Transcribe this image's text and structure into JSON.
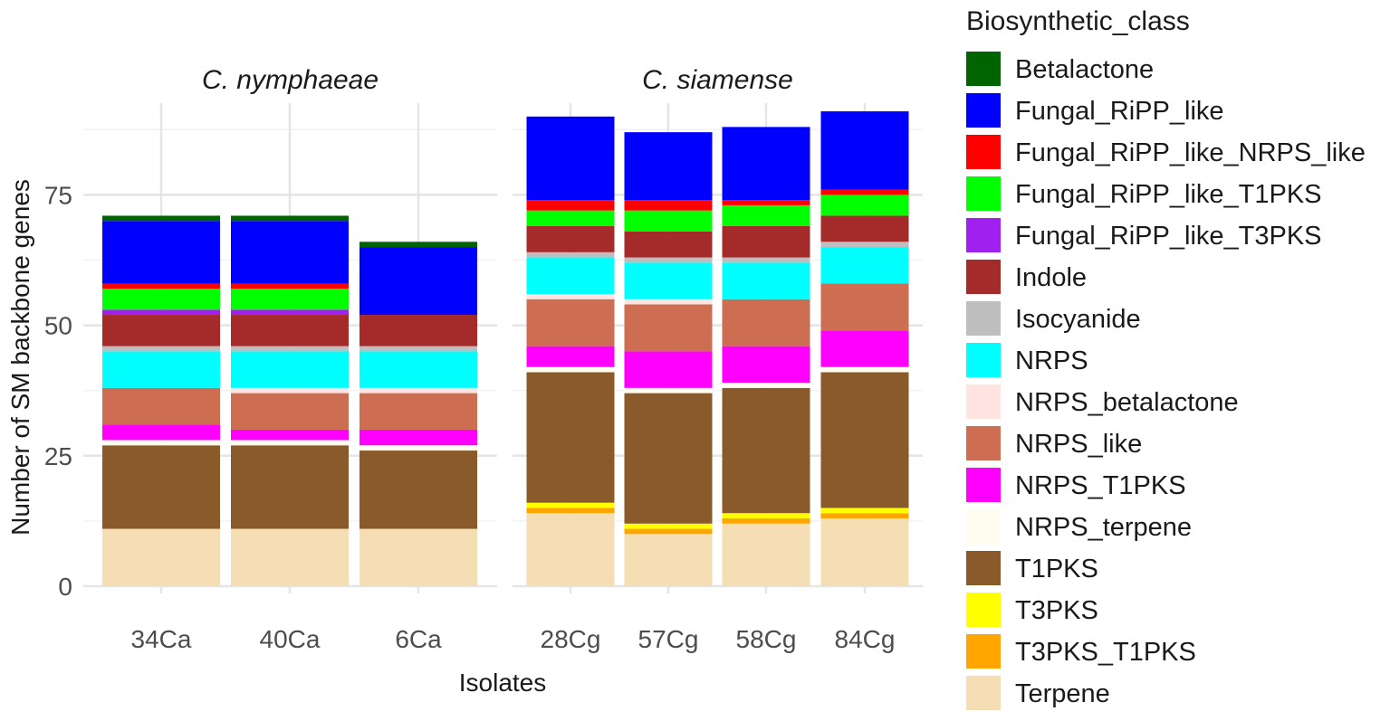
{
  "chart_data": {
    "type": "bar",
    "stacked": true,
    "xlabel": "Isolates",
    "ylabel": "Number of SM backbone genes",
    "ylim": [
      0,
      95
    ],
    "yticks": [
      0,
      25,
      50,
      75
    ],
    "legend_title": "Biosynthetic_class",
    "legend_position": "right",
    "facets": [
      {
        "title": "C. nymphaeae",
        "categories": [
          "34Ca",
          "40Ca",
          "6Ca"
        ]
      },
      {
        "title": "C. siamense",
        "categories": [
          "28Cg",
          "57Cg",
          "58Cg",
          "84Cg"
        ]
      }
    ],
    "categories": [
      "34Ca",
      "40Ca",
      "6Ca",
      "28Cg",
      "57Cg",
      "58Cg",
      "84Cg"
    ],
    "series": [
      {
        "name": "Betalactone",
        "color": "#006400",
        "values": [
          1,
          1,
          1,
          0,
          0,
          0,
          0
        ]
      },
      {
        "name": "Fungal_RiPP_like",
        "color": "#0000FF",
        "values": [
          12,
          12,
          13,
          16,
          13,
          14,
          15
        ]
      },
      {
        "name": "Fungal_RiPP_like_NRPS_like",
        "color": "#FF0000",
        "values": [
          1,
          1,
          0,
          2,
          2,
          1,
          1
        ]
      },
      {
        "name": "Fungal_RiPP_like_T1PKS",
        "color": "#00FF00",
        "values": [
          4,
          4,
          0,
          3,
          4,
          4,
          4
        ]
      },
      {
        "name": "Fungal_RiPP_like_T3PKS",
        "color": "#A020F0",
        "values": [
          1,
          1,
          0,
          0,
          0,
          0,
          0
        ]
      },
      {
        "name": "Indole",
        "color": "#A52A2A",
        "values": [
          6,
          6,
          6,
          5,
          5,
          6,
          5
        ]
      },
      {
        "name": "Isocyanide",
        "color": "#BEBEBE",
        "values": [
          1,
          1,
          1,
          1,
          1,
          1,
          1
        ]
      },
      {
        "name": "NRPS",
        "color": "#00FFFF",
        "values": [
          7,
          7,
          7,
          7,
          7,
          7,
          7
        ]
      },
      {
        "name": "NRPS_betalactone",
        "color": "#FFE4E1",
        "values": [
          0,
          1,
          1,
          1,
          1,
          0,
          0
        ]
      },
      {
        "name": "NRPS_like",
        "color": "#CD6E52",
        "values": [
          7,
          7,
          7,
          9,
          9,
          9,
          9
        ]
      },
      {
        "name": "NRPS_T1PKS",
        "color": "#FF00FF",
        "values": [
          3,
          2,
          3,
          4,
          7,
          7,
          7
        ]
      },
      {
        "name": "NRPS_terpene",
        "color": "#FFFDF0",
        "values": [
          1,
          1,
          1,
          1,
          1,
          1,
          1
        ]
      },
      {
        "name": "T1PKS",
        "color": "#8B5A2B",
        "values": [
          16,
          16,
          15,
          25,
          25,
          24,
          26
        ]
      },
      {
        "name": "T3PKS",
        "color": "#FFFF00",
        "values": [
          0,
          0,
          0,
          1,
          1,
          1,
          1
        ]
      },
      {
        "name": "T3PKS_T1PKS",
        "color": "#FFA500",
        "values": [
          0,
          0,
          0,
          1,
          1,
          1,
          1
        ]
      },
      {
        "name": "Terpene",
        "color": "#F5DEB3",
        "values": [
          11,
          11,
          11,
          14,
          10,
          12,
          13
        ]
      }
    ]
  }
}
